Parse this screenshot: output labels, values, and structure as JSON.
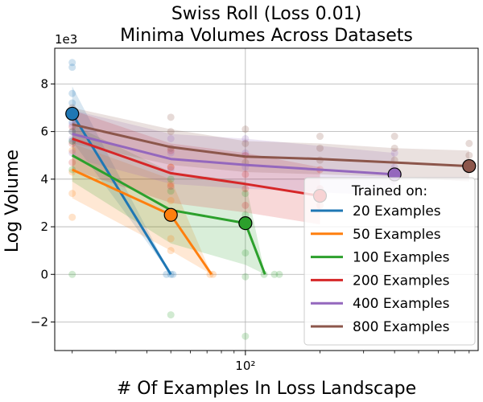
{
  "chart_data": {
    "type": "line",
    "title_lines": [
      "Swiss Roll (Loss 0.01)",
      "Minima Volumes Across Datasets"
    ],
    "xlabel": "# Of Examples In Loss Landscape",
    "ylabel": "Log Volume",
    "x_scale": "log",
    "xlim": [
      17,
      870
    ],
    "ylim": [
      -3200,
      9500
    ],
    "y_multiplier_label": "1e3",
    "x_ticks": [
      {
        "value": 100,
        "label": "10²"
      }
    ],
    "y_ticks": [
      {
        "value": -2000,
        "label": "−2"
      },
      {
        "value": 0,
        "label": "0"
      },
      {
        "value": 2000,
        "label": "2"
      },
      {
        "value": 4000,
        "label": "4"
      },
      {
        "value": 6000,
        "label": "6"
      },
      {
        "value": 8000,
        "label": "8"
      }
    ],
    "grid": true,
    "legend": {
      "title": "Trained on:",
      "placement": "center-right"
    },
    "series": [
      {
        "name": "20 Examples",
        "color": "#1f77b4",
        "x": [
          20,
          50
        ],
        "mean": [
          6750,
          0
        ],
        "band_low": [
          5600,
          0
        ],
        "band_high": [
          7900,
          0
        ],
        "marker_x": 20,
        "marker_y": 6750,
        "scatter": [
          [
            20,
            8900
          ],
          [
            20,
            8700
          ],
          [
            20,
            7600
          ],
          [
            20,
            7200
          ],
          [
            20,
            6800
          ],
          [
            20,
            6400
          ],
          [
            20,
            6000
          ],
          [
            20,
            5600
          ],
          [
            48,
            0
          ],
          [
            50,
            0
          ],
          [
            51,
            0
          ]
        ]
      },
      {
        "name": "50 Examples",
        "color": "#ff7f0e",
        "x": [
          20,
          50,
          73
        ],
        "mean": [
          4400,
          2500,
          0
        ],
        "band_low": [
          3200,
          1000,
          0
        ],
        "band_high": [
          5500,
          4000,
          0
        ],
        "marker_x": 50,
        "marker_y": 2500,
        "scatter": [
          [
            20,
            5200
          ],
          [
            20,
            4300
          ],
          [
            20,
            3400
          ],
          [
            20,
            2400
          ],
          [
            50,
            4500
          ],
          [
            50,
            3800
          ],
          [
            50,
            3100
          ],
          [
            50,
            2500
          ],
          [
            50,
            1500
          ],
          [
            50,
            1000
          ],
          [
            72,
            0
          ],
          [
            74,
            0
          ]
        ]
      },
      {
        "name": "100 Examples",
        "color": "#2ca02c",
        "x": [
          20,
          50,
          100,
          120
        ],
        "mean": [
          5000,
          2700,
          2150,
          0
        ],
        "band_low": [
          3900,
          1300,
          400,
          0
        ],
        "band_high": [
          6300,
          4300,
          3900,
          0
        ],
        "marker_x": 100,
        "marker_y": 2150,
        "scatter": [
          [
            20,
            0
          ],
          [
            20,
            4400
          ],
          [
            20,
            5600
          ],
          [
            50,
            -1700
          ],
          [
            50,
            3500
          ],
          [
            50,
            4000
          ],
          [
            100,
            -2600
          ],
          [
            100,
            -100
          ],
          [
            100,
            900
          ],
          [
            100,
            2500
          ],
          [
            100,
            3400
          ],
          [
            119,
            0
          ],
          [
            131,
            0
          ],
          [
            137,
            0
          ]
        ]
      },
      {
        "name": "200 Examples",
        "color": "#d62728",
        "x": [
          20,
          50,
          100,
          200
        ],
        "mean": [
          5700,
          4250,
          3800,
          3300
        ],
        "band_low": [
          4400,
          3000,
          2600,
          2100
        ],
        "band_high": [
          6900,
          5500,
          5100,
          4500
        ],
        "marker_x": 200,
        "marker_y": 3300,
        "scatter": [
          [
            20,
            6900
          ],
          [
            20,
            6200
          ],
          [
            20,
            5500
          ],
          [
            20,
            4700
          ],
          [
            50,
            5200
          ],
          [
            50,
            4500
          ],
          [
            50,
            3700
          ],
          [
            100,
            5000
          ],
          [
            100,
            4200
          ],
          [
            100,
            3600
          ],
          [
            100,
            2900
          ],
          [
            200,
            4400
          ],
          [
            200,
            3600
          ],
          [
            200,
            2900
          ]
        ]
      },
      {
        "name": "400 Examples",
        "color": "#9467bd",
        "x": [
          20,
          50,
          100,
          400
        ],
        "mean": [
          5900,
          4850,
          4600,
          4200
        ],
        "band_low": [
          4900,
          3800,
          3600,
          3300
        ],
        "band_high": [
          6900,
          5900,
          5700,
          5100
        ],
        "marker_x": 400,
        "marker_y": 4200,
        "scatter": [
          [
            20,
            6800
          ],
          [
            20,
            6300
          ],
          [
            20,
            5700
          ],
          [
            20,
            5100
          ],
          [
            50,
            5700
          ],
          [
            50,
            5100
          ],
          [
            50,
            4400
          ],
          [
            100,
            5700
          ],
          [
            100,
            5100
          ],
          [
            100,
            4500
          ],
          [
            400,
            5100
          ],
          [
            400,
            4500
          ],
          [
            400,
            3900
          ]
        ]
      },
      {
        "name": "800 Examples",
        "color": "#8c564b",
        "x": [
          20,
          50,
          100,
          200,
          400,
          800
        ],
        "mean": [
          6300,
          5350,
          4950,
          4850,
          4700,
          4550
        ],
        "band_low": [
          5500,
          4600,
          4300,
          4200,
          4100,
          3900
        ],
        "band_high": [
          7000,
          6100,
          5600,
          5500,
          5300,
          5200
        ],
        "marker_x": 800,
        "marker_y": 4550,
        "scatter": [
          [
            20,
            7000
          ],
          [
            20,
            6600
          ],
          [
            20,
            6000
          ],
          [
            50,
            6600
          ],
          [
            50,
            6000
          ],
          [
            50,
            5300
          ],
          [
            100,
            6100
          ],
          [
            100,
            5500
          ],
          [
            100,
            4700
          ],
          [
            200,
            5800
          ],
          [
            200,
            5300
          ],
          [
            200,
            4800
          ],
          [
            400,
            5800
          ],
          [
            400,
            5300
          ],
          [
            400,
            4800
          ],
          [
            800,
            5500
          ],
          [
            800,
            5000
          ],
          [
            800,
            4400
          ]
        ]
      }
    ]
  }
}
